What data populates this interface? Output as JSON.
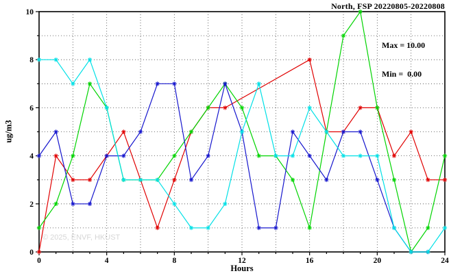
{
  "title": "North, FSP 20220805-20220808",
  "annotation": {
    "max_label": "Max = 10.00",
    "min_label": "Min =  0.00"
  },
  "watermark": "© 2025, ENVF, HKUST",
  "chart_data": {
    "type": "line",
    "title": "North, FSP 20220805-20220808",
    "xlabel": "Hours",
    "ylabel": "ug/m3",
    "xlim": [
      0,
      24
    ],
    "ylim": [
      0,
      10
    ],
    "x_ticks": [
      0,
      4,
      8,
      12,
      16,
      20,
      24
    ],
    "y_ticks": [
      0,
      2,
      4,
      6,
      8,
      10
    ],
    "x_minor_step": 1,
    "y_minor_step": 1,
    "x_grid_step": 2,
    "y_grid_step": 1,
    "grid": "dotted",
    "legend_position": "none",
    "x": [
      0,
      1,
      2,
      3,
      4,
      5,
      6,
      7,
      8,
      9,
      10,
      11,
      12,
      13,
      14,
      15,
      16,
      17,
      18,
      19,
      20,
      21,
      22,
      23,
      24
    ],
    "series": [
      {
        "name": "red",
        "color": "#e00000",
        "values": [
          0,
          4,
          3,
          3,
          4,
          5,
          3,
          1,
          3,
          5,
          6,
          6,
          null,
          null,
          null,
          null,
          8,
          5,
          5,
          6,
          6,
          4,
          5,
          3,
          3
        ]
      },
      {
        "name": "green",
        "color": "#00d400",
        "values": [
          1,
          2,
          4,
          7,
          6,
          3,
          3,
          3,
          4,
          5,
          6,
          7,
          6,
          4,
          4,
          3,
          1,
          5,
          9,
          10,
          6,
          3,
          0,
          1,
          4
        ]
      },
      {
        "name": "blue",
        "color": "#1515cd",
        "values": [
          4,
          5,
          2,
          2,
          4,
          4,
          5,
          7,
          7,
          3,
          4,
          7,
          5,
          1,
          1,
          5,
          4,
          3,
          5,
          5,
          3,
          1,
          0,
          0,
          null
        ]
      },
      {
        "name": "cyan",
        "color": "#00e0e6",
        "values": [
          8,
          8,
          7,
          8,
          6,
          3,
          3,
          3,
          2,
          1,
          1,
          2,
          5,
          7,
          4,
          4,
          6,
          5,
          4,
          4,
          4,
          1,
          0,
          0,
          1
        ]
      }
    ],
    "stats": {
      "max": 10.0,
      "min": 0.0
    }
  }
}
